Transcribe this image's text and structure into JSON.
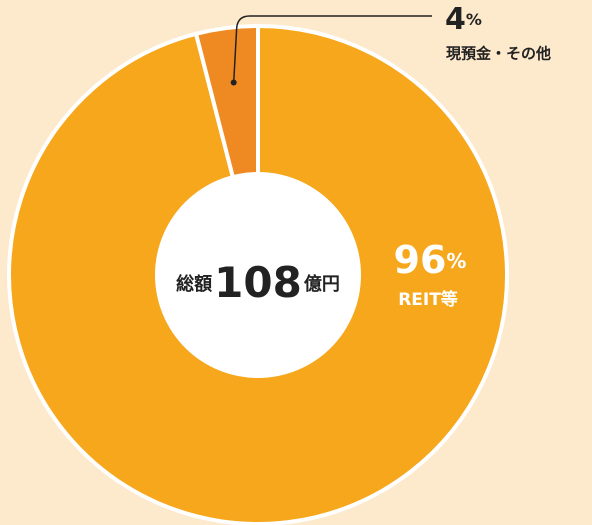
{
  "chart_data": {
    "type": "pie",
    "categories": [
      "REIT等",
      "現預金・その他"
    ],
    "values": [
      96,
      4
    ],
    "value_labels": [
      "96%",
      "4%"
    ],
    "colors": [
      "#f6a71c",
      "#ef8a23"
    ],
    "center": {
      "prefix": "総額",
      "total": 108,
      "unit": "億円"
    }
  }
}
